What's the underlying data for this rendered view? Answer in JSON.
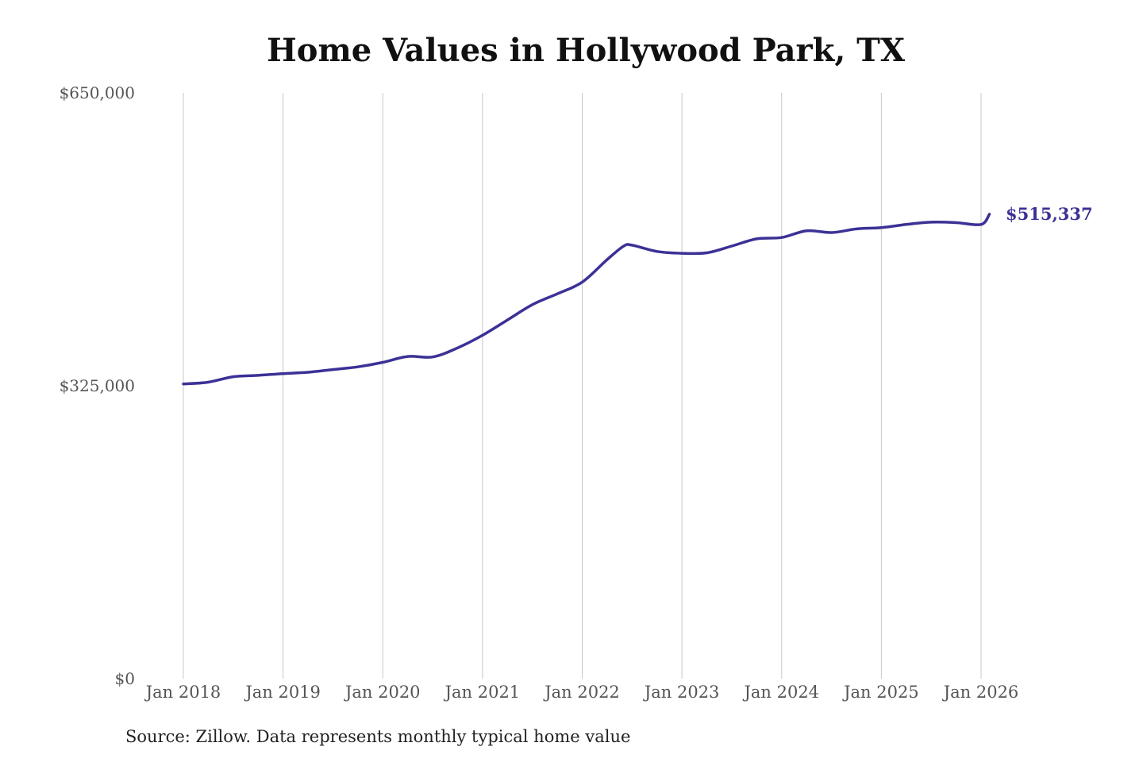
{
  "chart_data": {
    "type": "line",
    "title": "Home Values in Hollywood Park, TX",
    "xlabel": "",
    "ylabel": "",
    "ylim": [
      0,
      650000
    ],
    "y_ticks": [
      0,
      325000,
      650000
    ],
    "y_tick_labels": [
      "$0",
      "$325,000",
      "$650,000"
    ],
    "x_ticks": [
      2018,
      2019,
      2020,
      2021,
      2022,
      2023,
      2024,
      2025,
      2026
    ],
    "x_tick_labels": [
      "Jan 2018",
      "Jan 2019",
      "Jan 2020",
      "Jan 2021",
      "Jan 2022",
      "Jan 2023",
      "Jan 2024",
      "Jan 2025",
      "Jan 2026"
    ],
    "grid": "vertical",
    "legend": "none",
    "series": [
      {
        "color": "#3b3196",
        "points": [
          {
            "date": "2018-01",
            "value": 327000
          },
          {
            "date": "2018-04",
            "value": 329000
          },
          {
            "date": "2018-07",
            "value": 335000
          },
          {
            "date": "2018-10",
            "value": 336500
          },
          {
            "date": "2019-01",
            "value": 338500
          },
          {
            "date": "2019-04",
            "value": 340000
          },
          {
            "date": "2019-07",
            "value": 343000
          },
          {
            "date": "2019-10",
            "value": 346000
          },
          {
            "date": "2020-01",
            "value": 351000
          },
          {
            "date": "2020-04",
            "value": 357500
          },
          {
            "date": "2020-07",
            "value": 357000
          },
          {
            "date": "2020-10",
            "value": 367000
          },
          {
            "date": "2021-01",
            "value": 381000
          },
          {
            "date": "2021-04",
            "value": 398000
          },
          {
            "date": "2021-07",
            "value": 415000
          },
          {
            "date": "2021-10",
            "value": 427000
          },
          {
            "date": "2022-01",
            "value": 440000
          },
          {
            "date": "2022-04",
            "value": 465000
          },
          {
            "date": "2022-06",
            "value": 480000
          },
          {
            "date": "2022-07",
            "value": 481000
          },
          {
            "date": "2022-10",
            "value": 474000
          },
          {
            "date": "2023-01",
            "value": 472000
          },
          {
            "date": "2023-04",
            "value": 472500
          },
          {
            "date": "2023-07",
            "value": 480000
          },
          {
            "date": "2023-10",
            "value": 488000
          },
          {
            "date": "2024-01",
            "value": 489500
          },
          {
            "date": "2024-04",
            "value": 497000
          },
          {
            "date": "2024-07",
            "value": 495000
          },
          {
            "date": "2024-10",
            "value": 499000
          },
          {
            "date": "2025-01",
            "value": 500500
          },
          {
            "date": "2025-04",
            "value": 504000
          },
          {
            "date": "2025-07",
            "value": 506500
          },
          {
            "date": "2025-10",
            "value": 506000
          },
          {
            "date": "2026-01",
            "value": 504000
          },
          {
            "date": "2026-02",
            "value": 515337
          }
        ]
      }
    ],
    "end_label": "$515,337",
    "source": "Source: Zillow. Data represents monthly typical home value"
  }
}
